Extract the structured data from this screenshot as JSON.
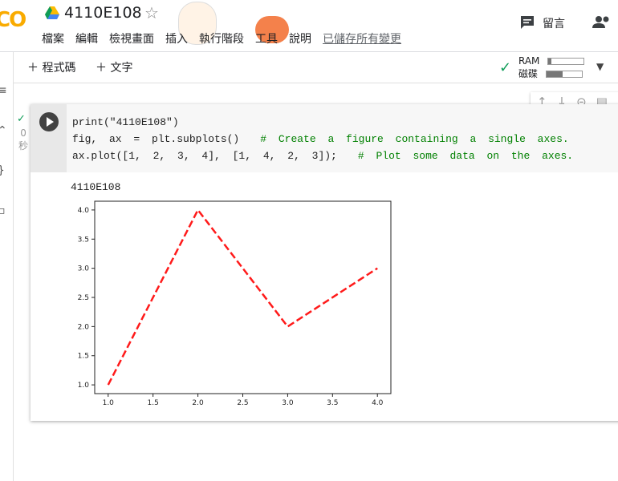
{
  "header": {
    "logo": "CO",
    "title": "4110E108",
    "menu": [
      "檔案",
      "編輯",
      "檢視畫面",
      "插入",
      "執行階段",
      "工具",
      "說明"
    ],
    "save_status": "已儲存所有變更",
    "comment": "留言"
  },
  "toolbar": {
    "add_code": "程式碼",
    "add_text": "文字",
    "ram": "RAM",
    "disk": "磁碟"
  },
  "cell": {
    "exec_time_value": "0",
    "exec_time_unit": "秒",
    "code_lines": [
      {
        "code": "print(\"4110E108\")"
      },
      {
        "code": "fig, ax = plt.subplots()",
        "comment": "# Create a figure containing a single axes."
      },
      {
        "code": "ax.plot([1, 2, 3, 4], [1, 4, 2, 3]);",
        "comment": "# Plot some data on the axes."
      }
    ],
    "output_text": "4110E108"
  },
  "chart_data": {
    "type": "line",
    "x": [
      1,
      2,
      3,
      4
    ],
    "values": [
      1,
      4,
      2,
      3
    ],
    "color": "#ff1a1a",
    "line_style": "dashed",
    "xlim": [
      0.85,
      4.15
    ],
    "ylim": [
      0.85,
      4.15
    ],
    "xticks": [
      {
        "value": 1,
        "label": "1.0"
      },
      {
        "value": 1.5,
        "label": "1.5"
      },
      {
        "value": 2,
        "label": "2.0"
      },
      {
        "value": 2.5,
        "label": "2.5"
      },
      {
        "value": 3,
        "label": "3.0"
      },
      {
        "value": 3.5,
        "label": "3.5"
      },
      {
        "value": 4,
        "label": "4.0"
      }
    ],
    "yticks": [
      {
        "value": 1,
        "label": "1.0"
      },
      {
        "value": 1.5,
        "label": "1.5"
      },
      {
        "value": 2,
        "label": "2.0"
      },
      {
        "value": 2.5,
        "label": "2.5"
      },
      {
        "value": 3,
        "label": "3.0"
      },
      {
        "value": 3.5,
        "label": "3.5"
      },
      {
        "value": 4,
        "label": "4.0"
      }
    ],
    "grid": false
  }
}
